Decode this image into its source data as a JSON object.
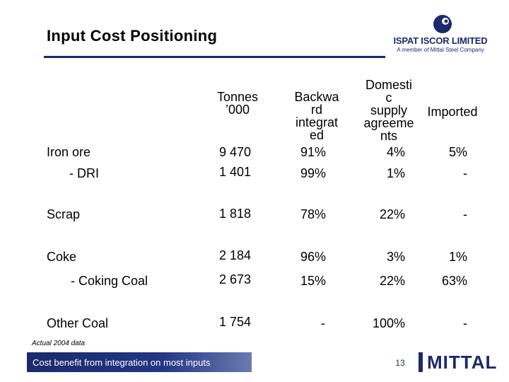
{
  "slide": {
    "title": "Input Cost Positioning",
    "note": "Actual 2004 data",
    "banner": "Cost benefit from integration on most inputs",
    "page_number": "13"
  },
  "logo_top": {
    "name": "ISPAT ISCOR LIMITED",
    "tagline": "A member of Mittal Steel Company"
  },
  "logo_bottom": {
    "text": "MITTAL"
  },
  "colors": {
    "brand_navy": "#1b2a6b",
    "banner_light": "#6b7ab0"
  },
  "table": {
    "headers": {
      "tonnes": [
        "Tonnes",
        "’000"
      ],
      "backward": [
        "Backwa",
        "rd",
        "integrat",
        "ed"
      ],
      "domestic": [
        "Domesti",
        "c",
        "supply",
        "agreeme",
        "nts"
      ],
      "imported": "Imported"
    },
    "rows": [
      {
        "label": "Iron ore",
        "tonnes": "9 470",
        "backward": "91%",
        "domestic": "4%",
        "imported": "5%"
      },
      {
        "label": "- DRI",
        "tonnes": "1 401",
        "backward": "99%",
        "domestic": "1%",
        "imported": "-"
      },
      {
        "label": "Scrap",
        "tonnes": "1 818",
        "backward": "78%",
        "domestic": "22%",
        "imported": "-"
      },
      {
        "label": "Coke",
        "tonnes": "2 184",
        "backward": "96%",
        "domestic": "3%",
        "imported": "1%"
      },
      {
        "label": "- Coking Coal",
        "tonnes": "2 673",
        "backward": "15%",
        "domestic": "22%",
        "imported": "63%"
      },
      {
        "label": "Other Coal",
        "tonnes": "1 754",
        "backward": "-",
        "domestic": "100%",
        "imported": "-"
      }
    ]
  }
}
